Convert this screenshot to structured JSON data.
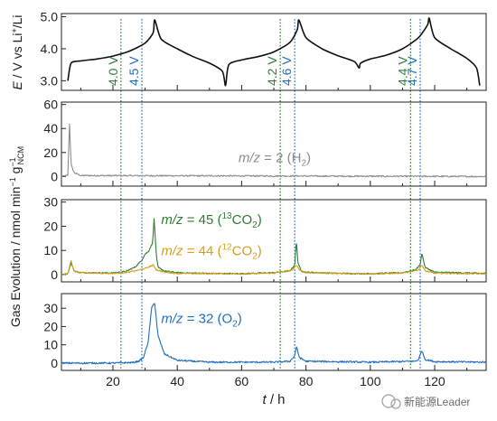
{
  "watermark": "新能源Leader",
  "chart_data": {
    "type": "line",
    "xlabel": "t",
    "xunit": "h",
    "xlim": [
      4,
      136
    ],
    "xticks": [
      20,
      40,
      60,
      80,
      100,
      120
    ],
    "shared_ylabel": "Gas Evolution / nmol min⁻¹ g⁻¹NCM",
    "colors": {
      "voltage": "#111111",
      "H2": "#8c8c8c",
      "CO2_13": "#2e7d32",
      "CO2_12": "#d4a017",
      "O2": "#1f6fbf"
    },
    "markers": [
      {
        "label": "4.0 V",
        "x": 22.5,
        "color": "#2e7d32"
      },
      {
        "label": "4.5 V",
        "x": 29,
        "color": "#1f6fbf"
      },
      {
        "label": "4.2 V",
        "x": 72,
        "color": "#2e7d32"
      },
      {
        "label": "4.6 V",
        "x": 76.5,
        "color": "#1f6fbf"
      },
      {
        "label": "4.4 V",
        "x": 112.5,
        "color": "#2e7d32"
      },
      {
        "label": "4.7 V",
        "x": 115.5,
        "color": "#1f6fbf"
      }
    ],
    "panels": [
      {
        "id": "voltage",
        "ylabel": "E / V vs Li⁺/Li",
        "ylim": [
          2.7,
          5.1
        ],
        "yticks": [
          "3.0",
          "4.0",
          "5.0"
        ],
        "ytick_values": [
          3.0,
          4.0,
          5.0
        ],
        "series": [
          {
            "key": "voltage",
            "x": [
              6,
              7,
              10,
              15,
              20,
              25,
              30,
              32.5,
              33,
              35,
              40,
              45,
              50,
              54,
              55,
              56,
              60,
              65,
              70,
              75,
              77.3,
              77.8,
              80,
              85,
              90,
              95,
              96.5,
              97,
              100,
              105,
              110,
              115,
              117.8,
              118.3,
              120,
              125,
              130,
              133,
              134
            ],
            "y": [
              3.0,
              3.55,
              3.62,
              3.68,
              3.77,
              3.92,
              4.18,
              4.5,
              4.9,
              4.3,
              4.0,
              3.75,
              3.55,
              3.3,
              2.85,
              3.5,
              3.65,
              3.75,
              3.9,
              4.2,
              4.6,
              4.9,
              4.35,
              4.0,
              3.78,
              3.6,
              3.4,
              3.55,
              3.68,
              3.8,
              4.0,
              4.35,
              4.75,
              4.95,
              4.35,
              4.0,
              3.7,
              3.4,
              2.85
            ]
          }
        ]
      },
      {
        "id": "h2",
        "ylim": [
          -8,
          62
        ],
        "yticks": [
          "0",
          "20",
          "40",
          "60"
        ],
        "ytick_values": [
          0,
          20,
          40,
          60
        ],
        "series": [
          {
            "key": "H2",
            "name": "m/z = 2 (H2)",
            "x": [
              4,
              6,
              6.5,
              7,
              7.5,
              8,
              9,
              10,
              136
            ],
            "y": [
              0,
              1,
              45,
              10,
              6,
              3,
              2,
              0.8,
              0
            ]
          }
        ]
      },
      {
        "id": "co2",
        "ylim": [
          -3,
          31
        ],
        "yticks": [
          "0",
          "10",
          "20",
          "30"
        ],
        "ytick_values": [
          0,
          10,
          20,
          30
        ],
        "series": [
          {
            "key": "CO2_13",
            "name": "m/z = 45 (13CO2)",
            "x": [
              4,
              6,
              7,
              7.5,
              8,
              10,
              20,
              24,
              27,
              29,
              30,
              31,
              32.3,
              32.8,
              33.5,
              34,
              36,
              40,
              50,
              60,
              70,
              75,
              76.5,
              77,
              77.5,
              78.5,
              80,
              90,
              100,
              110,
              114,
              115.5,
              116,
              117,
              120,
              136
            ],
            "y": [
              0,
              0.5,
              5,
              3,
              1.5,
              0.8,
              0.7,
              1.3,
              3.2,
              6,
              8.5,
              9.5,
              13,
              23,
              8,
              3,
              1.5,
              0.8,
              0.5,
              0.4,
              0.8,
              1.5,
              4,
              14,
              5,
              1.5,
              1,
              0.5,
              0.4,
              0.8,
              2,
              4,
              9,
              3,
              1,
              0.5
            ]
          },
          {
            "key": "CO2_12",
            "name": "m/z = 44 (12CO2)",
            "x": [
              4,
              6,
              7,
              7.5,
              8,
              10,
              20,
              25,
              30,
              32.5,
              33.5,
              36,
              40,
              60,
              70,
              76,
              77,
              78,
              80,
              100,
              110,
              115,
              116,
              117,
              120,
              136
            ],
            "y": [
              0,
              0.5,
              6,
              3,
              1.5,
              0.8,
              0.5,
              1,
              2.5,
              4,
              2,
              1,
              0.5,
              0.3,
              0.6,
              2,
              4,
              2,
              0.8,
              0.3,
              0.6,
              2,
              4,
              1.5,
              0.6,
              0.3
            ]
          }
        ]
      },
      {
        "id": "o2",
        "ylim": [
          -4,
          38
        ],
        "yticks": [
          "0",
          "10",
          "20",
          "30"
        ],
        "ytick_values": [
          0,
          10,
          20,
          30
        ],
        "series": [
          {
            "key": "O2",
            "name": "m/z = 32 (O2)",
            "x": [
              4,
              20,
              26,
              28,
              29.5,
              31,
              32,
              33,
              34,
              36,
              40,
              50,
              70,
              75,
              76.5,
              77,
              78,
              80,
              100,
              114,
              115,
              116,
              117,
              120,
              136
            ],
            "y": [
              0,
              0,
              0.3,
              1,
              3,
              12,
              30,
              33,
              15,
              5,
              1.5,
              0.5,
              0.5,
              1,
              4,
              9,
              3,
              1,
              0.5,
              1,
              2,
              7,
              2,
              0.8,
              0.5
            ]
          }
        ]
      }
    ],
    "labels": [
      {
        "panel": "h2",
        "series": "H2",
        "italic": "m/z",
        "text": " = 2 (H",
        "sub": "2",
        "after": ")",
        "x": 59,
        "y": 12
      },
      {
        "panel": "co2",
        "series": "CO2_13",
        "italic": "m/z",
        "text": " = 45 (",
        "sup": "13",
        "text2": "CO",
        "sub": "2",
        "after": ")",
        "x": 35,
        "y": 21
      },
      {
        "panel": "co2",
        "series": "CO2_12",
        "italic": "m/z",
        "text": " = 44 (",
        "sup": "12",
        "text2": "CO",
        "sub": "2",
        "after": ")",
        "x": 35,
        "y": 8
      },
      {
        "panel": "o2",
        "series": "O2",
        "italic": "m/z",
        "text": " = 32 (O",
        "sub": "2",
        "after": ")",
        "x": 35,
        "y": 22
      }
    ]
  }
}
